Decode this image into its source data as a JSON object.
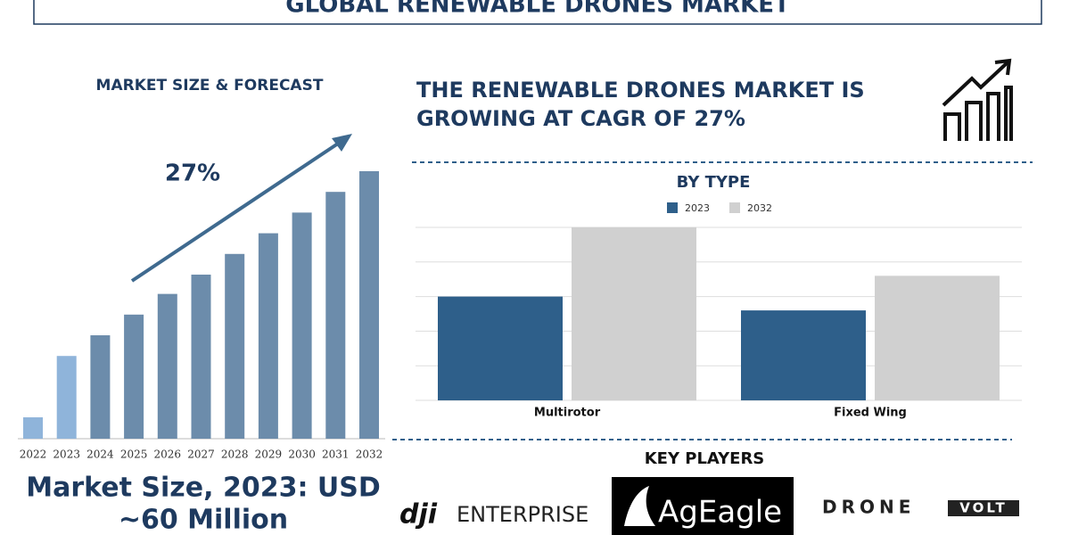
{
  "header": {
    "title": "GLOBAL RENEWABLE DRONES MARKET"
  },
  "chart_data": [
    {
      "type": "bar",
      "title": "MARKET SIZE & FORECAST",
      "categories": [
        "2022",
        "2023",
        "2024",
        "2025",
        "2026",
        "2027",
        "2028",
        "2029",
        "2030",
        "2031",
        "2032"
      ],
      "values": [
        15.5,
        60,
        75,
        90,
        105,
        119,
        134,
        149,
        164,
        179,
        194
      ],
      "colors": [
        "#8fb4da",
        "#8fb4da",
        "#6c8cab",
        "#6c8cab",
        "#6c8cab",
        "#6c8cab",
        "#6c8cab",
        "#6c8cab",
        "#6c8cab",
        "#6c8cab",
        "#6c8cab"
      ],
      "annotation": "27%"
    },
    {
      "type": "grouped_bar",
      "title": "BY TYPE",
      "categories": [
        "Multirotor",
        "Fixed Wing"
      ],
      "series": [
        {
          "name": "2023",
          "color": "#2e5f8a",
          "values": [
            3.0,
            2.6
          ]
        },
        {
          "name": "2032",
          "color": "#d0d0d0",
          "values": [
            5.0,
            3.6
          ]
        }
      ],
      "ylim": [
        0,
        5
      ],
      "grid": true
    }
  ],
  "headline": [
    "THE RENEWABLE DRONES MARKET IS",
    "GROWING AT CAGR OF 27%"
  ],
  "market_size": [
    "Market Size, 2023: USD",
    "~60 Million"
  ],
  "key_players": {
    "title": "KEY PLAYERS",
    "items": [
      {
        "name": "dji",
        "suffix": "ENTERPRISE"
      },
      {
        "name": "AgEagle"
      },
      {
        "name": "DRONE",
        "suffix": "VOLT"
      }
    ]
  }
}
